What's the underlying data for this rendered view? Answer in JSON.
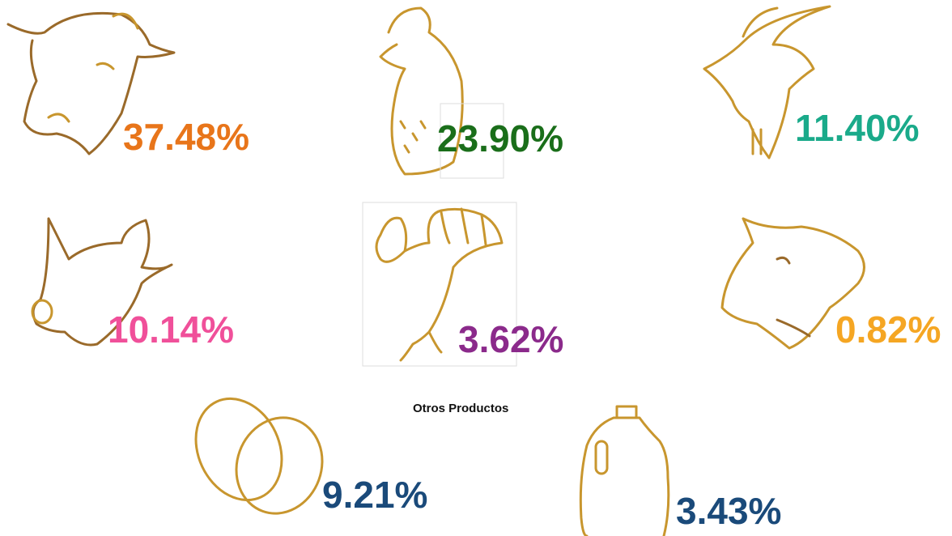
{
  "items": [
    {
      "label": "37.48%"
    },
    {
      "label": "23.90%"
    },
    {
      "label": "11.40%"
    },
    {
      "label": "10.14%"
    },
    {
      "label": "3.62%"
    },
    {
      "label": "0.82%"
    }
  ],
  "section_title": "Otros Productos",
  "other_items": [
    {
      "label": "9.21%"
    },
    {
      "label": "3.43%"
    }
  ]
}
